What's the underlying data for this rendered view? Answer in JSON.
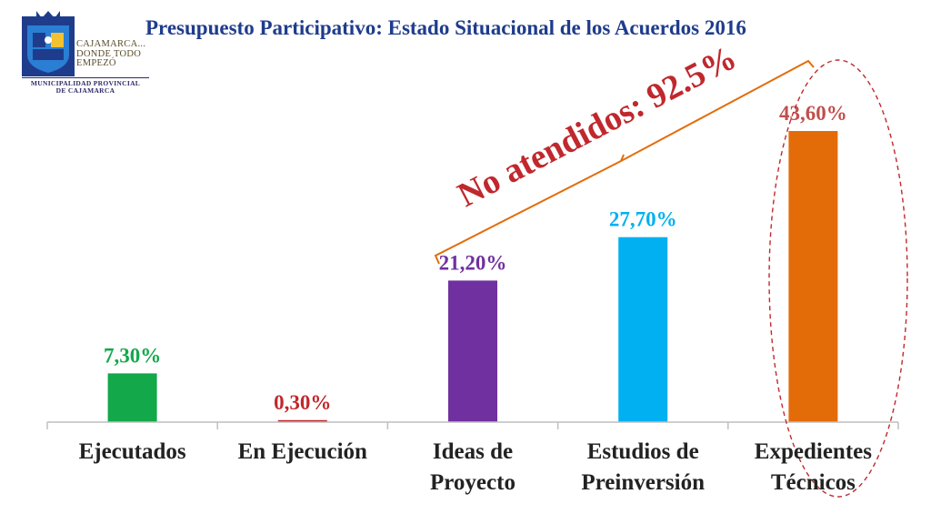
{
  "header": {
    "title": "Presupuesto Participativo: Estado Situacional de los Acuerdos 2016",
    "logo_lines": [
      "CAJAMARCA...",
      "DONDE TODO",
      "EMPEZÓ"
    ],
    "logo_sub": [
      "MUNICIPALIDAD PROVINCIAL",
      "DE CAJAMARCA"
    ]
  },
  "annotation": {
    "text": "No atendidos: 92.5%",
    "color": "#c0282d"
  },
  "chart_data": {
    "type": "bar",
    "categories": [
      "Ejecutados",
      "En Ejecución",
      "Ideas de\nProyecto",
      "Estudios de\nPreinversión",
      "Expedientes\nTécnicos"
    ],
    "values": [
      7.3,
      0.3,
      21.2,
      27.7,
      43.6
    ],
    "data_labels": [
      "7,30%",
      "0,30%",
      "21,20%",
      "27,70%",
      "43,60%"
    ],
    "colors": [
      "#13a84a",
      "#c0282d",
      "#7030a0",
      "#00b0f0",
      "#e36c09"
    ],
    "label_colors": [
      "#13a84a",
      "#c0282d",
      "#7030a0",
      "#00b0f0",
      "#c0504d"
    ],
    "ylim": [
      0,
      50
    ],
    "grid": false,
    "legend": "none",
    "xlabel": "",
    "ylabel": ""
  }
}
